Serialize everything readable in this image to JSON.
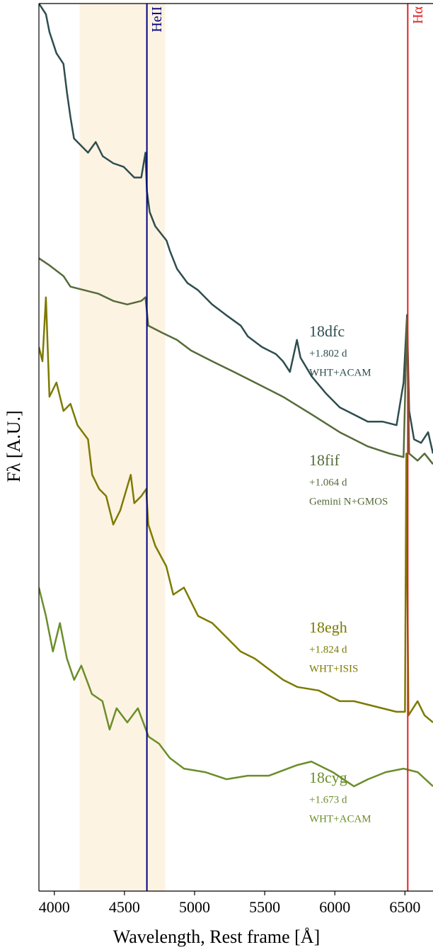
{
  "chart_data": {
    "type": "line",
    "xlabel": "Wavelength, Rest frame [Å]",
    "ylabel": "Fλ [A.U.]",
    "xlim": [
      3890,
      6700
    ],
    "ylim": [
      0,
      100
    ],
    "xticks": [
      4000,
      4500,
      5000,
      5500,
      6000,
      6500
    ],
    "shaded_band": {
      "range": [
        4180,
        4790
      ],
      "color": "#fdf3e3"
    },
    "vlines": [
      {
        "label": "HeII",
        "x": 4660,
        "color": "#000080"
      },
      {
        "label": "Hα",
        "x": 6520,
        "color": "#e02020"
      }
    ],
    "series": [
      {
        "name": "18dfc",
        "phase": "+1.802 d",
        "instrument": "WHT+ACAM",
        "color": "#2e4d4f",
        "x": [
          3890,
          3940,
          3965,
          4015,
          4065,
          4090,
          4115,
          4140,
          4190,
          4240,
          4295,
          4345,
          4420,
          4495,
          4570,
          4620,
          4650,
          4660,
          4680,
          4720,
          4800,
          4825,
          4875,
          4950,
          5025,
          5125,
          5225,
          5330,
          5380,
          5480,
          5580,
          5630,
          5680,
          5730,
          5755,
          5835,
          5935,
          6035,
          6135,
          6235,
          6340,
          6440,
          6490,
          6515,
          6530,
          6565,
          6615,
          6665,
          6700
        ],
        "values": [
          100,
          98.8,
          96.8,
          94.4,
          93.2,
          90,
          87.2,
          84.8,
          84,
          83.2,
          84.4,
          82.8,
          82,
          81.6,
          80.4,
          80.4,
          83.2,
          78.9,
          76.5,
          74.9,
          73.3,
          72.1,
          70.1,
          68.5,
          67.7,
          66.1,
          64.9,
          63.7,
          62.5,
          61.3,
          60.5,
          59.7,
          58.5,
          62.1,
          60.1,
          58,
          56.1,
          54.5,
          53.7,
          52.9,
          52.9,
          52.5,
          57.3,
          64.9,
          54.1,
          50.9,
          50.5,
          51.7,
          49.3
        ]
      },
      {
        "name": "18fif",
        "phase": "+1.064 d",
        "instrument": "Gemini N+GMOS",
        "color": "#566b3a",
        "x": [
          3890,
          3965,
          4065,
          4115,
          4215,
          4315,
          4420,
          4520,
          4620,
          4650,
          4670,
          4770,
          4875,
          4975,
          5125,
          5280,
          5430,
          5630,
          5835,
          6035,
          6235,
          6390,
          6490,
          6515,
          6530,
          6590,
          6640,
          6700
        ],
        "values": [
          71.3,
          70.5,
          69.3,
          68.1,
          67.7,
          67.3,
          66.5,
          66.1,
          66.5,
          66.9,
          63.7,
          62.9,
          62.1,
          60.9,
          59.7,
          58.5,
          57.3,
          55.7,
          53.7,
          51.7,
          50.1,
          49.3,
          48.9,
          64.5,
          49.3,
          48.5,
          49.3,
          48.1
        ]
      },
      {
        "name": "18egh",
        "phase": "+1.824 d",
        "instrument": "WHT+ISIS",
        "color": "#7d7a00",
        "x": [
          3890,
          3915,
          3940,
          3965,
          4015,
          4065,
          4115,
          4165,
          4240,
          4270,
          4320,
          4370,
          4420,
          4470,
          4545,
          4570,
          4620,
          4655,
          4670,
          4720,
          4798,
          4848,
          4924,
          5025,
          5126,
          5227,
          5328,
          5429,
          5530,
          5631,
          5732,
          5884,
          6035,
          6136,
          6338,
          6439,
          6500,
          6510,
          6525,
          6590,
          6640,
          6700
        ],
        "values": [
          61.3,
          59.7,
          66.9,
          55.7,
          57.3,
          54.1,
          54.9,
          52.5,
          50.9,
          46.9,
          45.3,
          44.5,
          41.3,
          42.9,
          46.9,
          43.7,
          44.5,
          45.3,
          41.3,
          38.9,
          36.6,
          33.4,
          34.2,
          31,
          30.2,
          28.6,
          27,
          26.2,
          25,
          23.8,
          23,
          22.6,
          21.4,
          21.4,
          20.6,
          20.2,
          20.2,
          49.3,
          19.8,
          21.4,
          19.8,
          19
        ]
      },
      {
        "name": "18cyg",
        "phase": "+1.673 d",
        "instrument": "WHT+ACAM",
        "color": "#6b8e2a",
        "x": [
          3890,
          3940,
          3990,
          4040,
          4090,
          4141,
          4192,
          4268,
          4343,
          4394,
          4444,
          4520,
          4596,
          4672,
          4747,
          4823,
          4924,
          5076,
          5227,
          5379,
          5530,
          5732,
          5833,
          5985,
          6136,
          6237,
          6363,
          6490,
          6591,
          6700
        ],
        "values": [
          34.2,
          31,
          27,
          30.2,
          26.2,
          23.8,
          25.4,
          22.2,
          21.4,
          18.2,
          20.6,
          19,
          20.6,
          17.4,
          16.6,
          15,
          13.8,
          13.4,
          12.6,
          13,
          13,
          14.2,
          14.6,
          13.4,
          11.8,
          12.6,
          13.4,
          13.8,
          13.4,
          11.8
        ]
      }
    ]
  }
}
